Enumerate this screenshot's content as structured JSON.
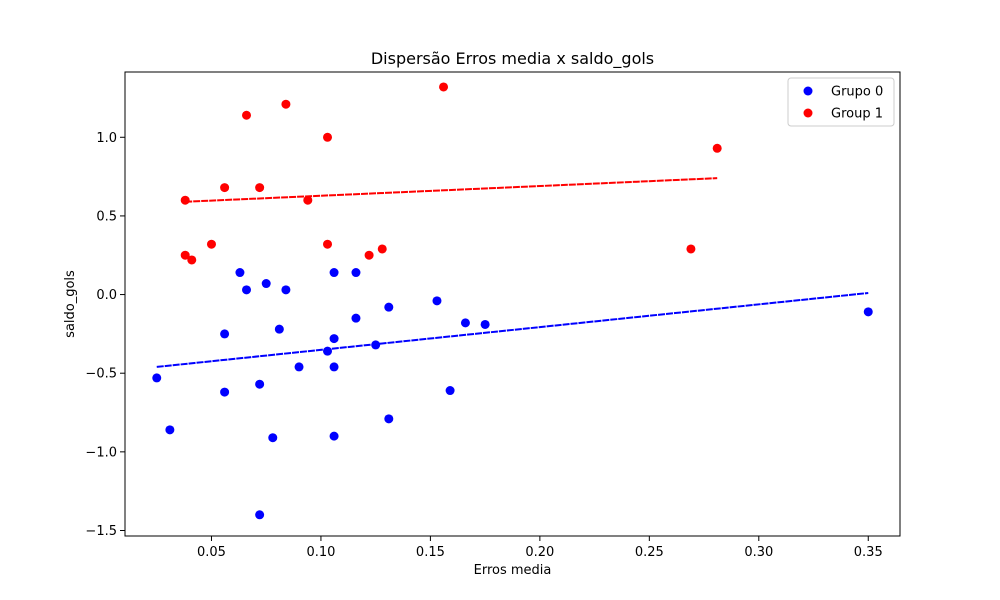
{
  "chart_data": {
    "type": "scatter",
    "title": "Dispersão Erros media x saldo_gols",
    "xlabel": "Erros media",
    "ylabel": "saldo_gols",
    "xlim": [
      0.0105,
      0.3645
    ],
    "ylim": [
      -1.535,
      1.415
    ],
    "xticks": [
      0.05,
      0.1,
      0.15,
      0.2,
      0.25,
      0.3,
      0.35
    ],
    "xtick_labels": [
      "0.05",
      "0.10",
      "0.15",
      "0.20",
      "0.25",
      "0.30",
      "0.35"
    ],
    "yticks": [
      -1.5,
      -1.0,
      -0.5,
      0.0,
      0.5,
      1.0
    ],
    "ytick_labels": [
      "−1.5",
      "−1.0",
      "−0.5",
      "0.0",
      "0.5",
      "1.0"
    ],
    "grid": false,
    "legend_position": "top-right",
    "series": [
      {
        "name": "Grupo 0",
        "color": "#0000ff",
        "points": [
          {
            "x": 0.025,
            "y": -0.53
          },
          {
            "x": 0.031,
            "y": -0.86
          },
          {
            "x": 0.056,
            "y": -0.25
          },
          {
            "x": 0.056,
            "y": -0.62
          },
          {
            "x": 0.063,
            "y": 0.14
          },
          {
            "x": 0.066,
            "y": 0.03
          },
          {
            "x": 0.072,
            "y": -0.57
          },
          {
            "x": 0.072,
            "y": -1.4
          },
          {
            "x": 0.075,
            "y": 0.07
          },
          {
            "x": 0.078,
            "y": -0.91
          },
          {
            "x": 0.081,
            "y": -0.22
          },
          {
            "x": 0.084,
            "y": 0.03
          },
          {
            "x": 0.09,
            "y": -0.46
          },
          {
            "x": 0.103,
            "y": -0.36
          },
          {
            "x": 0.106,
            "y": 0.14
          },
          {
            "x": 0.106,
            "y": -0.28
          },
          {
            "x": 0.106,
            "y": -0.46
          },
          {
            "x": 0.106,
            "y": -0.9
          },
          {
            "x": 0.116,
            "y": 0.14
          },
          {
            "x": 0.116,
            "y": -0.15
          },
          {
            "x": 0.125,
            "y": -0.32
          },
          {
            "x": 0.131,
            "y": -0.08
          },
          {
            "x": 0.131,
            "y": -0.79
          },
          {
            "x": 0.153,
            "y": -0.04
          },
          {
            "x": 0.159,
            "y": -0.61
          },
          {
            "x": 0.166,
            "y": -0.18
          },
          {
            "x": 0.175,
            "y": -0.19
          },
          {
            "x": 0.35,
            "y": -0.11
          }
        ],
        "fit_line": {
          "x": [
            0.025,
            0.35
          ],
          "y": [
            -0.46,
            0.01
          ]
        }
      },
      {
        "name": "Group 1",
        "color": "#ff0000",
        "points": [
          {
            "x": 0.038,
            "y": 0.6
          },
          {
            "x": 0.038,
            "y": 0.25
          },
          {
            "x": 0.041,
            "y": 0.22
          },
          {
            "x": 0.05,
            "y": 0.32
          },
          {
            "x": 0.056,
            "y": 0.68
          },
          {
            "x": 0.066,
            "y": 1.14
          },
          {
            "x": 0.072,
            "y": 0.68
          },
          {
            "x": 0.084,
            "y": 1.21
          },
          {
            "x": 0.094,
            "y": 0.6
          },
          {
            "x": 0.103,
            "y": 1.0
          },
          {
            "x": 0.103,
            "y": 0.32
          },
          {
            "x": 0.122,
            "y": 0.25
          },
          {
            "x": 0.128,
            "y": 0.29
          },
          {
            "x": 0.156,
            "y": 1.32
          },
          {
            "x": 0.269,
            "y": 0.29
          },
          {
            "x": 0.281,
            "y": 0.93
          }
        ],
        "fit_line": {
          "x": [
            0.038,
            0.281
          ],
          "y": [
            0.59,
            0.74
          ]
        }
      }
    ]
  }
}
